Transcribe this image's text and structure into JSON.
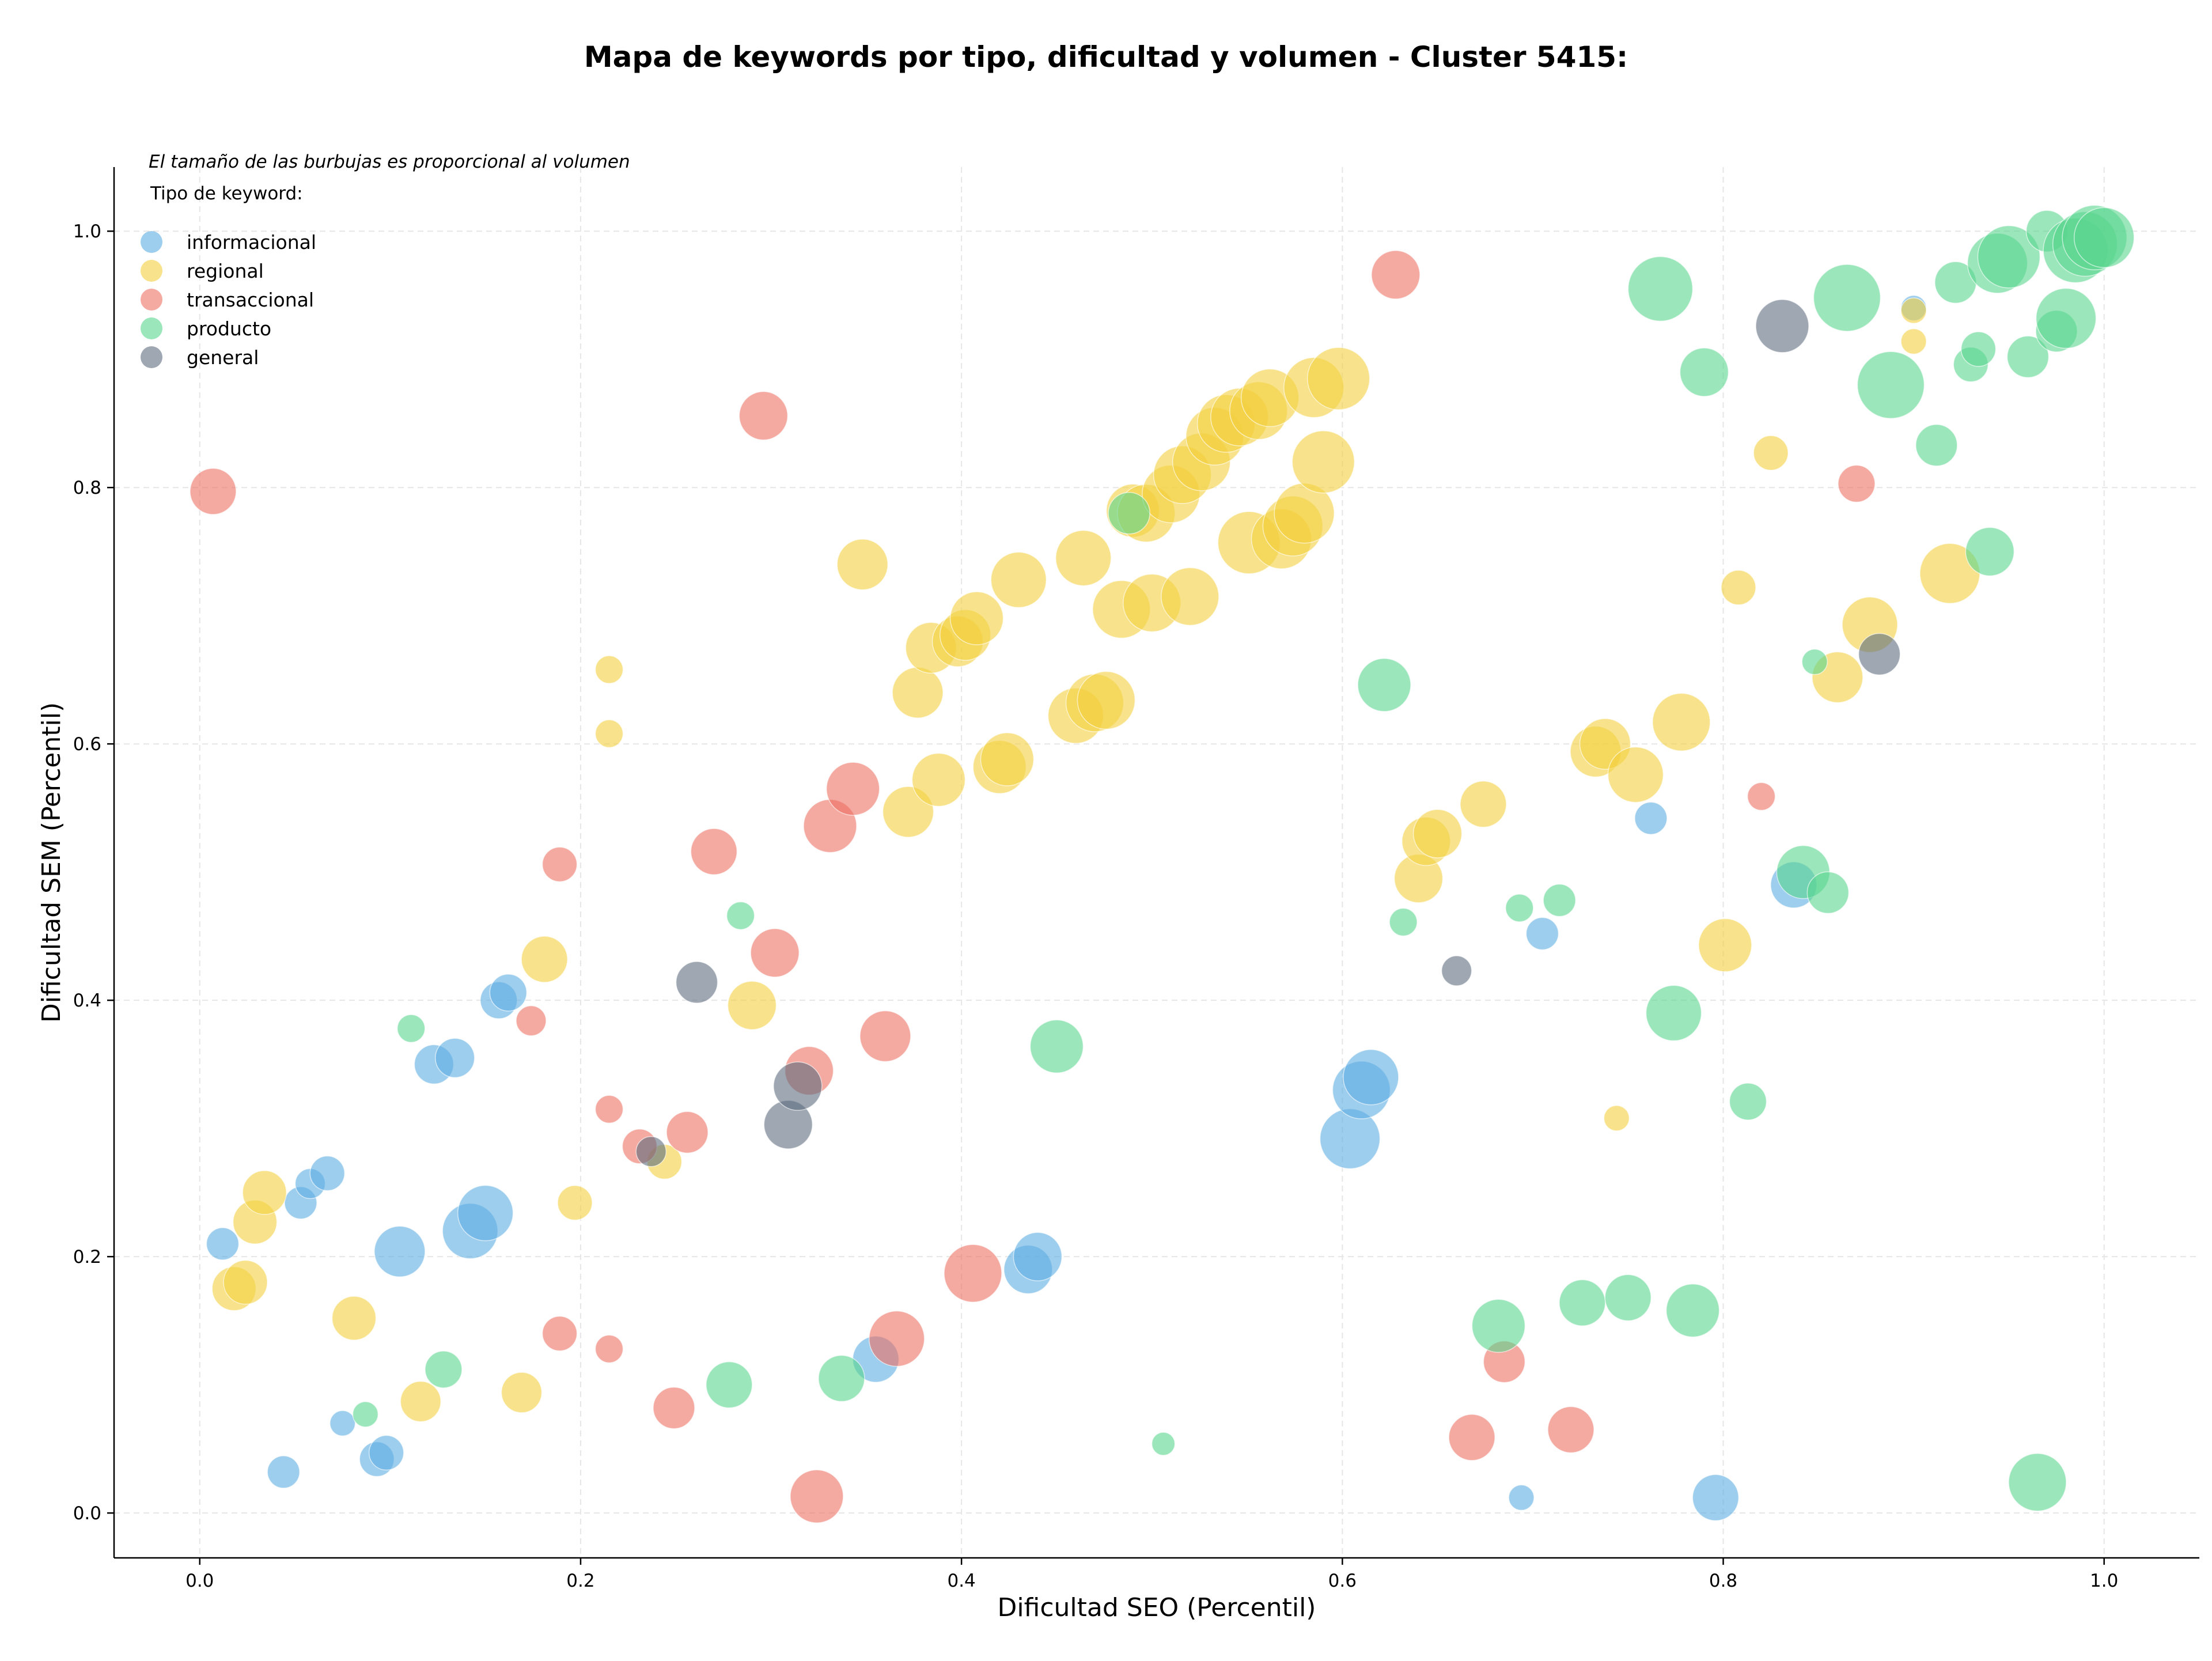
{
  "chart_data": {
    "type": "scatter",
    "title": "Mapa de keywords por tipo, dificultad y volumen - Cluster 5415:",
    "subtitle": "El tamaño de las burbujas es proporcional al volumen",
    "xlabel": "Dificultad SEO (Percentil)",
    "ylabel": "Dificultad SEM (Percentil)",
    "xlim": [
      -0.045,
      1.05
    ],
    "ylim": [
      -0.035,
      1.05
    ],
    "xticks": [
      "0.0",
      "0.2",
      "0.4",
      "0.6",
      "0.8",
      "1.0"
    ],
    "yticks": [
      "0.0",
      "0.2",
      "0.4",
      "0.6",
      "0.8",
      "1.0"
    ],
    "grid": true,
    "legend_title": "Tipo de keyword:",
    "legend_position": "top-left",
    "series": [
      {
        "name": "informacional",
        "color": "#5DADE2",
        "points": [
          [
            0.012,
            0.21,
            28
          ],
          [
            0.053,
            0.242,
            28
          ],
          [
            0.058,
            0.257,
            26
          ],
          [
            0.067,
            0.265,
            30
          ],
          [
            0.075,
            0.07,
            22
          ],
          [
            0.093,
            0.042,
            30
          ],
          [
            0.098,
            0.047,
            30
          ],
          [
            0.105,
            0.204,
            44
          ],
          [
            0.123,
            0.35,
            34
          ],
          [
            0.134,
            0.355,
            34
          ],
          [
            0.142,
            0.22,
            48
          ],
          [
            0.15,
            0.234,
            48
          ],
          [
            0.157,
            0.4,
            32
          ],
          [
            0.162,
            0.406,
            32
          ],
          [
            0.044,
            0.032,
            28
          ],
          [
            0.355,
            0.12,
            40
          ],
          [
            0.435,
            0.19,
            42
          ],
          [
            0.44,
            0.2,
            42
          ],
          [
            0.604,
            0.292,
            52
          ],
          [
            0.61,
            0.33,
            50
          ],
          [
            0.615,
            0.34,
            48
          ],
          [
            0.694,
            0.012,
            22
          ],
          [
            0.705,
            0.452,
            28
          ],
          [
            0.762,
            0.542,
            28
          ],
          [
            0.796,
            0.012,
            40
          ],
          [
            0.837,
            0.49,
            40
          ],
          [
            0.9,
            0.94,
            22
          ]
        ]
      },
      {
        "name": "regional",
        "color": "#F4D03F",
        "points": [
          [
            0.018,
            0.175,
            38
          ],
          [
            0.024,
            0.18,
            38
          ],
          [
            0.029,
            0.227,
            38
          ],
          [
            0.034,
            0.25,
            38
          ],
          [
            0.081,
            0.152,
            38
          ],
          [
            0.116,
            0.087,
            35
          ],
          [
            0.169,
            0.094,
            35
          ],
          [
            0.181,
            0.432,
            40
          ],
          [
            0.197,
            0.242,
            30
          ],
          [
            0.215,
            0.658,
            24
          ],
          [
            0.215,
            0.608,
            24
          ],
          [
            0.244,
            0.274,
            30
          ],
          [
            0.29,
            0.396,
            42
          ],
          [
            0.348,
            0.74,
            44
          ],
          [
            0.372,
            0.547,
            44
          ],
          [
            0.377,
            0.64,
            44
          ],
          [
            0.384,
            0.675,
            44
          ],
          [
            0.388,
            0.572,
            46
          ],
          [
            0.398,
            0.68,
            44
          ],
          [
            0.402,
            0.685,
            44
          ],
          [
            0.408,
            0.698,
            46
          ],
          [
            0.42,
            0.582,
            46
          ],
          [
            0.424,
            0.588,
            46
          ],
          [
            0.43,
            0.728,
            48
          ],
          [
            0.46,
            0.622,
            48
          ],
          [
            0.464,
            0.745,
            48
          ],
          [
            0.47,
            0.632,
            50
          ],
          [
            0.476,
            0.634,
            50
          ],
          [
            0.484,
            0.705,
            50
          ],
          [
            0.49,
            0.782,
            46
          ],
          [
            0.497,
            0.78,
            50
          ],
          [
            0.5,
            0.71,
            50
          ],
          [
            0.51,
            0.795,
            50
          ],
          [
            0.516,
            0.81,
            50
          ],
          [
            0.52,
            0.715,
            50
          ],
          [
            0.526,
            0.82,
            50
          ],
          [
            0.533,
            0.84,
            50
          ],
          [
            0.539,
            0.85,
            50
          ],
          [
            0.546,
            0.855,
            50
          ],
          [
            0.551,
            0.757,
            54
          ],
          [
            0.556,
            0.86,
            50
          ],
          [
            0.562,
            0.87,
            50
          ],
          [
            0.568,
            0.76,
            52
          ],
          [
            0.574,
            0.77,
            52
          ],
          [
            0.58,
            0.78,
            52
          ],
          [
            0.585,
            0.878,
            52
          ],
          [
            0.59,
            0.82,
            54
          ],
          [
            0.598,
            0.885,
            54
          ],
          [
            0.64,
            0.495,
            42
          ],
          [
            0.644,
            0.524,
            42
          ],
          [
            0.65,
            0.53,
            42
          ],
          [
            0.674,
            0.553,
            40
          ],
          [
            0.733,
            0.594,
            44
          ],
          [
            0.738,
            0.6,
            44
          ],
          [
            0.754,
            0.576,
            48
          ],
          [
            0.778,
            0.617,
            50
          ],
          [
            0.744,
            0.308,
            22
          ],
          [
            0.801,
            0.443,
            46
          ],
          [
            0.808,
            0.722,
            30
          ],
          [
            0.825,
            0.827,
            30
          ],
          [
            0.86,
            0.652,
            44
          ],
          [
            0.877,
            0.693,
            48
          ],
          [
            0.9,
            0.938,
            22
          ],
          [
            0.9,
            0.914,
            22
          ],
          [
            0.919,
            0.733,
            52
          ]
        ]
      },
      {
        "name": "transaccional",
        "color": "#EC7063",
        "points": [
          [
            0.007,
            0.797,
            40
          ],
          [
            0.174,
            0.384,
            26
          ],
          [
            0.189,
            0.506,
            30
          ],
          [
            0.189,
            0.14,
            30
          ],
          [
            0.215,
            0.315,
            24
          ],
          [
            0.215,
            0.128,
            24
          ],
          [
            0.231,
            0.286,
            30
          ],
          [
            0.249,
            0.082,
            36
          ],
          [
            0.256,
            0.297,
            36
          ],
          [
            0.27,
            0.516,
            40
          ],
          [
            0.296,
            0.856,
            42
          ],
          [
            0.302,
            0.437,
            42
          ],
          [
            0.32,
            0.345,
            42
          ],
          [
            0.324,
            0.013,
            46
          ],
          [
            0.331,
            0.536,
            46
          ],
          [
            0.343,
            0.565,
            46
          ],
          [
            0.36,
            0.372,
            44
          ],
          [
            0.366,
            0.136,
            48
          ],
          [
            0.406,
            0.187,
            50
          ],
          [
            0.628,
            0.966,
            42
          ],
          [
            0.668,
            0.059,
            40
          ],
          [
            0.685,
            0.118,
            36
          ],
          [
            0.72,
            0.065,
            40
          ],
          [
            0.82,
            0.559,
            24
          ],
          [
            0.87,
            0.803,
            32
          ]
        ]
      },
      {
        "name": "producto",
        "color": "#58D68D",
        "points": [
          [
            0.087,
            0.077,
            22
          ],
          [
            0.111,
            0.378,
            24
          ],
          [
            0.128,
            0.112,
            32
          ],
          [
            0.278,
            0.1,
            40
          ],
          [
            0.284,
            0.466,
            24
          ],
          [
            0.337,
            0.105,
            40
          ],
          [
            0.45,
            0.364,
            46
          ],
          [
            0.488,
            0.78,
            36
          ],
          [
            0.506,
            0.054,
            20
          ],
          [
            0.622,
            0.646,
            46
          ],
          [
            0.632,
            0.461,
            24
          ],
          [
            0.682,
            0.146,
            46
          ],
          [
            0.693,
            0.472,
            24
          ],
          [
            0.714,
            0.478,
            28
          ],
          [
            0.726,
            0.164,
            40
          ],
          [
            0.75,
            0.168,
            40
          ],
          [
            0.767,
            0.955,
            56
          ],
          [
            0.774,
            0.39,
            48
          ],
          [
            0.784,
            0.158,
            46
          ],
          [
            0.79,
            0.89,
            42
          ],
          [
            0.813,
            0.321,
            32
          ],
          [
            0.842,
            0.5,
            46
          ],
          [
            0.848,
            0.664,
            22
          ],
          [
            0.855,
            0.484,
            36
          ],
          [
            0.865,
            0.948,
            58
          ],
          [
            0.888,
            0.88,
            58
          ],
          [
            0.912,
            0.833,
            36
          ],
          [
            0.922,
            0.96,
            36
          ],
          [
            0.93,
            0.896,
            30
          ],
          [
            0.934,
            0.908,
            30
          ],
          [
            0.94,
            0.75,
            42
          ],
          [
            0.944,
            0.975,
            52
          ],
          [
            0.95,
            0.98,
            54
          ],
          [
            0.96,
            0.902,
            36
          ],
          [
            0.965,
            0.024,
            50
          ],
          [
            0.97,
            1.0,
            36
          ],
          [
            0.975,
            0.922,
            36
          ],
          [
            0.98,
            0.932,
            52
          ],
          [
            0.985,
            0.985,
            56
          ],
          [
            0.99,
            0.99,
            56
          ],
          [
            0.995,
            0.995,
            56
          ],
          [
            1.0,
            0.995,
            52
          ]
        ]
      },
      {
        "name": "general",
        "color": "#5D6D7E",
        "points": [
          [
            0.237,
            0.282,
            26
          ],
          [
            0.261,
            0.414,
            36
          ],
          [
            0.309,
            0.303,
            42
          ],
          [
            0.314,
            0.333,
            42
          ],
          [
            0.66,
            0.423,
            26
          ],
          [
            0.831,
            0.926,
            46
          ],
          [
            0.882,
            0.67,
            36
          ]
        ]
      }
    ]
  }
}
